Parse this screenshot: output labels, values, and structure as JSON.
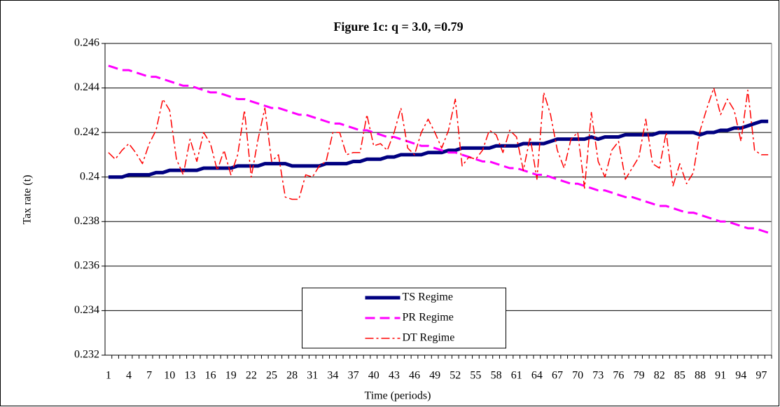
{
  "chart_data": {
    "type": "line",
    "title": "Figure 1c: q = 3.0,    =0.79",
    "xlabel": "Time (periods)",
    "ylabel": "Tax rate (t)",
    "categories": [
      1,
      null,
      null,
      4,
      null,
      null,
      7,
      null,
      null,
      10,
      null,
      null,
      13,
      null,
      null,
      16,
      null,
      null,
      19,
      null,
      null,
      22,
      null,
      null,
      25,
      null,
      null,
      28,
      null,
      null,
      31,
      null,
      null,
      34,
      null,
      null,
      37,
      null,
      null,
      40,
      null,
      null,
      43,
      null,
      null,
      46,
      null,
      null,
      49,
      null,
      null,
      52,
      null,
      null,
      55,
      null,
      null,
      58,
      null,
      null,
      61,
      null,
      null,
      64,
      null,
      null,
      67,
      null,
      null,
      70,
      null,
      null,
      73,
      null,
      null,
      76,
      null,
      null,
      79,
      null,
      null,
      82,
      null,
      null,
      85,
      null,
      null,
      88,
      null,
      null,
      91,
      null,
      null,
      94,
      null,
      null,
      97,
      null
    ],
    "ylim": [
      0.232,
      0.246
    ],
    "yticks": [
      0.232,
      0.234,
      0.236,
      0.238,
      0.24,
      0.242,
      0.244,
      0.246
    ],
    "grid": true,
    "legend": "lower center",
    "series": [
      {
        "name": "TS Regime",
        "color": "#000080",
        "linewidth": 5,
        "dash": "solid",
        "values": [
          0.24,
          0.24,
          0.24,
          0.2401,
          0.2401,
          0.2401,
          0.2401,
          0.2402,
          0.2402,
          0.2403,
          0.2403,
          0.2403,
          0.2403,
          0.2403,
          0.2404,
          0.2404,
          0.2404,
          0.2404,
          0.2404,
          0.2405,
          0.2405,
          0.2405,
          0.2405,
          0.2406,
          0.2406,
          0.2406,
          0.2406,
          0.2405,
          0.2405,
          0.2405,
          0.2405,
          0.2405,
          0.2406,
          0.2406,
          0.2406,
          0.2406,
          0.2407,
          0.2407,
          0.2408,
          0.2408,
          0.2408,
          0.2409,
          0.2409,
          0.241,
          0.241,
          0.241,
          0.241,
          0.2411,
          0.2411,
          0.2411,
          0.2412,
          0.2412,
          0.2413,
          0.2413,
          0.2413,
          0.2413,
          0.2413,
          0.2414,
          0.2414,
          0.2414,
          0.2414,
          0.2415,
          0.2415,
          0.2415,
          0.2415,
          0.2416,
          0.2417,
          0.2417,
          0.2417,
          0.2417,
          0.2417,
          0.2418,
          0.2417,
          0.2418,
          0.2418,
          0.2418,
          0.2419,
          0.2419,
          0.2419,
          0.2419,
          0.2419,
          0.242,
          0.242,
          0.242,
          0.242,
          0.242,
          0.242,
          0.2419,
          0.242,
          0.242,
          0.2421,
          0.2421,
          0.2422,
          0.2422,
          0.2423,
          0.2424,
          0.2425,
          0.2425
        ]
      },
      {
        "name": "PR Regime",
        "color": "#ff00ff",
        "linewidth": 3,
        "dash": "dashed",
        "values": [
          0.245,
          0.2449,
          0.2448,
          0.2448,
          0.2447,
          0.2446,
          0.2445,
          0.2445,
          0.2444,
          0.2443,
          0.2442,
          0.2441,
          0.2441,
          0.244,
          0.2439,
          0.2438,
          0.2438,
          0.2437,
          0.2436,
          0.2435,
          0.2435,
          0.2434,
          0.2433,
          0.2432,
          0.2431,
          0.2431,
          0.243,
          0.2429,
          0.2428,
          0.2428,
          0.2427,
          0.2426,
          0.2425,
          0.2424,
          0.2424,
          0.2423,
          0.2422,
          0.2421,
          0.2421,
          0.242,
          0.2419,
          0.2418,
          0.2418,
          0.2417,
          0.2416,
          0.2415,
          0.2414,
          0.2414,
          0.2413,
          0.2412,
          0.2411,
          0.2411,
          0.241,
          0.2409,
          0.2408,
          0.2407,
          0.2407,
          0.2406,
          0.2405,
          0.2404,
          0.2404,
          0.2403,
          0.2402,
          0.2401,
          0.2401,
          0.24,
          0.2399,
          0.2398,
          0.2397,
          0.2397,
          0.2396,
          0.2395,
          0.2394,
          0.2394,
          0.2393,
          0.2392,
          0.2391,
          0.2391,
          0.239,
          0.2389,
          0.2388,
          0.2387,
          0.2387,
          0.2386,
          0.2385,
          0.2384,
          0.2384,
          0.2383,
          0.2382,
          0.2381,
          0.238,
          0.238,
          0.2379,
          0.2378,
          0.2377,
          0.2377,
          0.2376,
          0.2375
        ]
      },
      {
        "name": "DT Regime",
        "color": "#ff0000",
        "linewidth": 1.5,
        "dash": "dashdot",
        "values": [
          0.2411,
          0.2408,
          0.2412,
          0.2415,
          0.2411,
          0.2406,
          0.2415,
          0.2421,
          0.2435,
          0.243,
          0.2408,
          0.2401,
          0.2417,
          0.2407,
          0.242,
          0.2415,
          0.2403,
          0.2412,
          0.2401,
          0.241,
          0.243,
          0.24,
          0.2417,
          0.2431,
          0.2407,
          0.241,
          0.2391,
          0.239,
          0.239,
          0.2401,
          0.24,
          0.2405,
          0.2407,
          0.242,
          0.242,
          0.241,
          0.2411,
          0.2411,
          0.2428,
          0.2414,
          0.2415,
          0.2412,
          0.242,
          0.2431,
          0.2413,
          0.241,
          0.242,
          0.2426,
          0.242,
          0.2413,
          0.2421,
          0.2435,
          0.2405,
          0.2409,
          0.2408,
          0.2412,
          0.2421,
          0.2419,
          0.2411,
          0.2421,
          0.2418,
          0.2403,
          0.2418,
          0.2399,
          0.2438,
          0.2428,
          0.2412,
          0.2404,
          0.2417,
          0.242,
          0.2395,
          0.2429,
          0.2407,
          0.24,
          0.2412,
          0.2416,
          0.2399,
          0.2404,
          0.2409,
          0.2426,
          0.2406,
          0.2404,
          0.242,
          0.2396,
          0.2406,
          0.2397,
          0.2402,
          0.2421,
          0.2431,
          0.244,
          0.2428,
          0.2435,
          0.243,
          0.2416,
          0.2439,
          0.2412,
          0.241,
          0.241
        ]
      }
    ]
  }
}
